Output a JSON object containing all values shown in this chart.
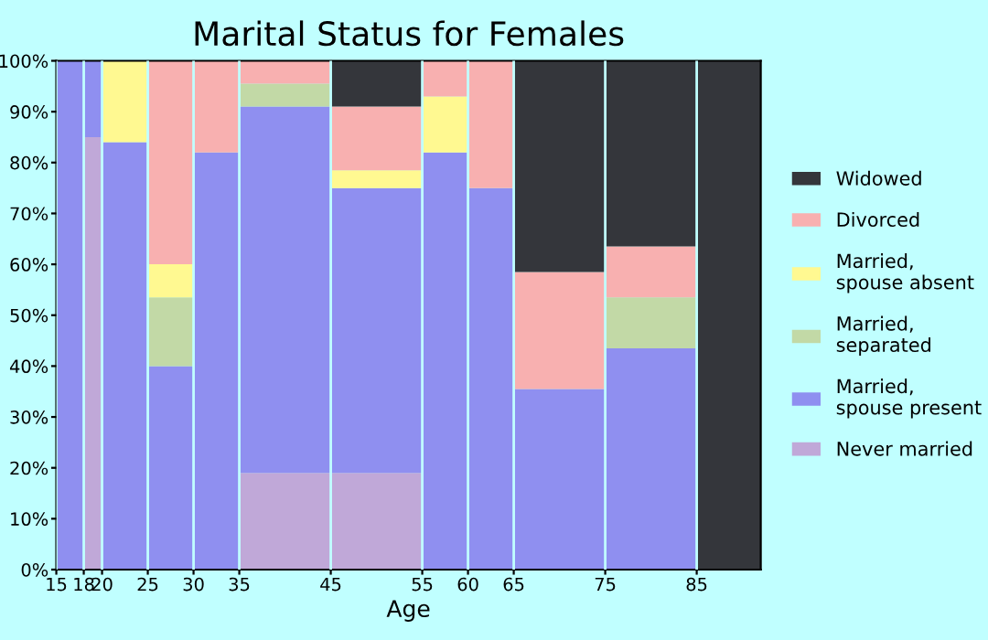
{
  "chart_data": {
    "type": "bar",
    "title": "Marital Status for Females",
    "xlabel": "Age",
    "stacked": true,
    "x": [
      16.5,
      19,
      22.5,
      27.5,
      32.5,
      40,
      50,
      57.5,
      62.5,
      70,
      80,
      88.5
    ],
    "xlim": [
      15,
      92
    ],
    "xticks": [
      15,
      18,
      20,
      25,
      30,
      35,
      45,
      55,
      60,
      65,
      75,
      85
    ],
    "ylim": [
      0,
      100
    ],
    "yticks": [
      {
        "value": 0,
        "label": "0%"
      },
      {
        "value": 10,
        "label": "10%"
      },
      {
        "value": 20,
        "label": "20%"
      },
      {
        "value": 30,
        "label": "30%"
      },
      {
        "value": 40,
        "label": "40%"
      },
      {
        "value": 50,
        "label": "50%"
      },
      {
        "value": 60,
        "label": "60%"
      },
      {
        "value": 70,
        "label": "70%"
      },
      {
        "value": 80,
        "label": "80%"
      },
      {
        "value": 90,
        "label": "90%"
      },
      {
        "value": 100,
        "label": "100%"
      }
    ],
    "series": [
      {
        "name": "Never married",
        "color": "#c0a8d8",
        "values": [
          null,
          85,
          null,
          null,
          null,
          19,
          19,
          null,
          null,
          null,
          null,
          null
        ]
      },
      {
        "name": "Married,\nspouse present",
        "color": "#8f8ff0",
        "values": [
          100,
          15,
          84,
          40,
          82,
          72,
          56,
          82,
          75,
          35.5,
          43.5,
          null
        ]
      },
      {
        "name": "Married,\nseparated",
        "color": "#c2d9a6",
        "values": [
          null,
          null,
          null,
          13.5,
          null,
          4.5,
          null,
          null,
          null,
          null,
          10,
          null
        ]
      },
      {
        "name": "Married,\nspouse absent",
        "color": "#fff991",
        "values": [
          null,
          null,
          16,
          6.5,
          null,
          null,
          3.5,
          11,
          null,
          null,
          null,
          null
        ]
      },
      {
        "name": "Divorced",
        "color": "#f8b0b0",
        "values": [
          null,
          null,
          null,
          40,
          18,
          4.5,
          12.5,
          7,
          25,
          23,
          10,
          null
        ]
      },
      {
        "name": "Widowed",
        "color": "#34363b",
        "values": [
          null,
          null,
          null,
          null,
          null,
          null,
          9,
          null,
          null,
          41.5,
          36.5,
          100
        ]
      }
    ],
    "grid": "x",
    "legend": "right"
  }
}
